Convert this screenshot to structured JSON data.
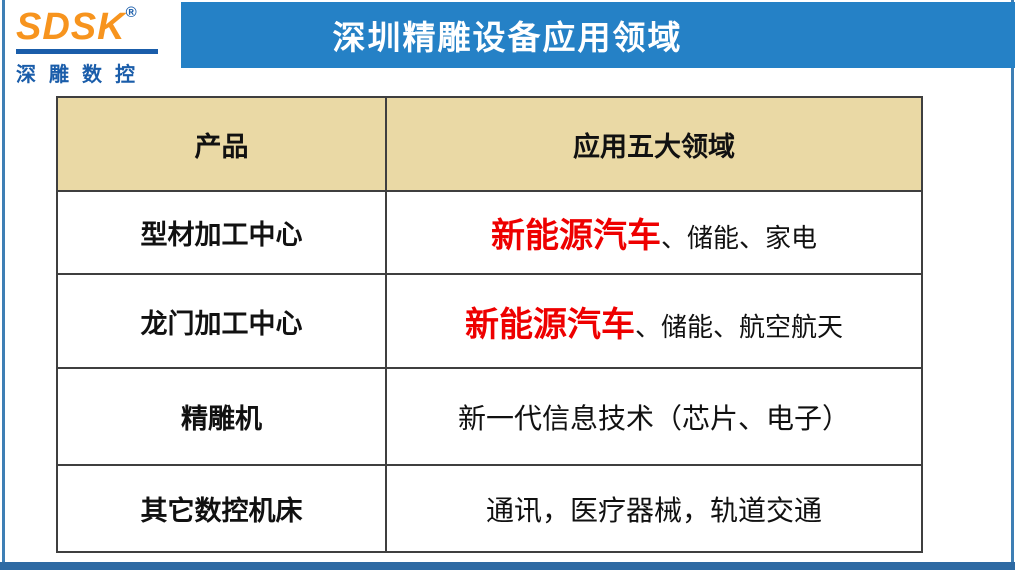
{
  "logo": {
    "brand": "SDSK",
    "registered_mark": "®",
    "subtitle": "深雕数控"
  },
  "header": {
    "title": "深圳精雕设备应用领域"
  },
  "table": {
    "columns": [
      "产品",
      "应用五大领域"
    ],
    "rows": [
      {
        "product": "型材加工中心",
        "highlight": "新能源汽车",
        "rest": "、储能、家电"
      },
      {
        "product": "龙门加工中心",
        "highlight": "新能源汽车",
        "rest": "、储能、航空航天"
      },
      {
        "product": "精雕机",
        "highlight": "",
        "rest": "新一代信息技术（芯片、电子）"
      },
      {
        "product": "其它数控机床",
        "highlight": "",
        "rest": "通讯，医疗器械，轨道交通"
      }
    ]
  },
  "colors": {
    "banner_blue": "#2581c6",
    "header_tan": "#ead9a5",
    "accent_red": "#ee0000",
    "logo_orange": "#f7941e",
    "logo_blue": "#1a5daa",
    "frame_side_blue": "#3e7fb5",
    "frame_bottom_blue": "#2e6aa3",
    "table_border": "#3f3f3f"
  }
}
